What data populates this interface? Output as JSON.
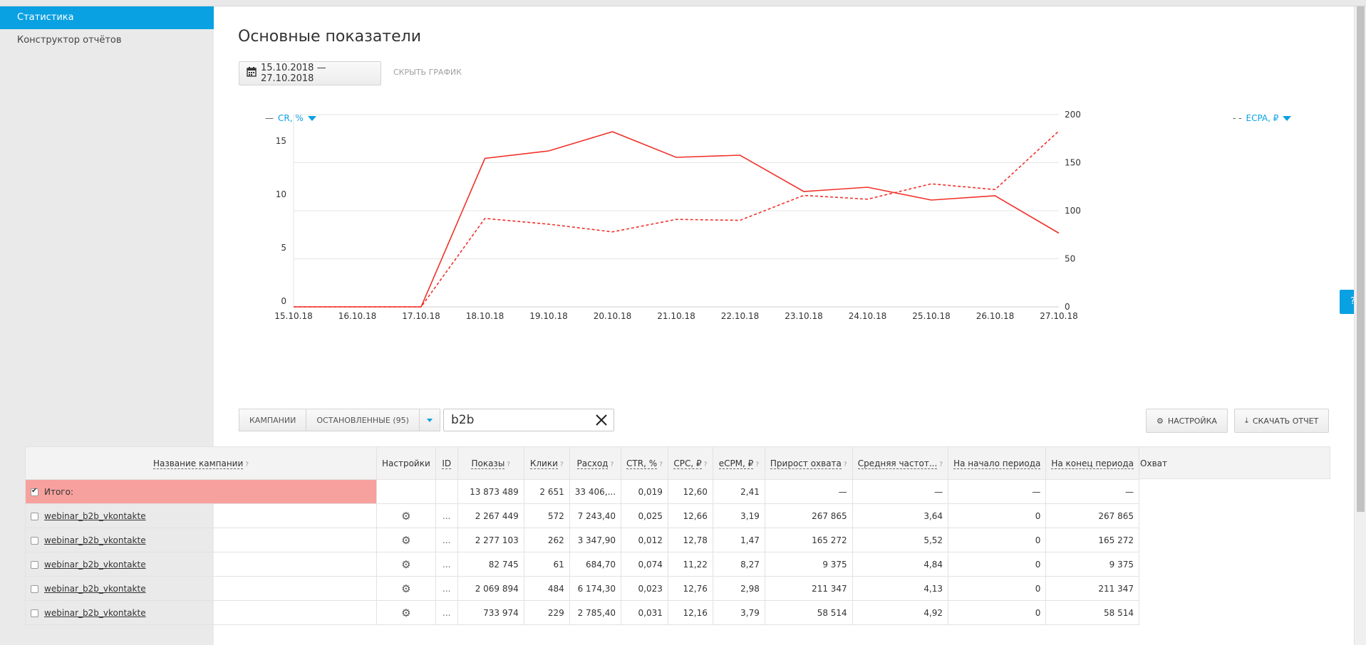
{
  "sidebar": {
    "items": [
      {
        "label": "Статистика",
        "active": true
      },
      {
        "label": "Конструктор отчётов",
        "active": false
      }
    ]
  },
  "page": {
    "title": "Основные показатели",
    "date_range": "15.10.2018  —  27.10.2018",
    "hide_chart": "СКРЫТЬ ГРАФИК"
  },
  "chart_data": {
    "type": "line",
    "left_axis_label": "CR, %",
    "right_axis_label": "ECPA, ₽",
    "categories": [
      "15.10.18",
      "16.10.18",
      "17.10.18",
      "18.10.18",
      "19.10.18",
      "20.10.18",
      "21.10.18",
      "22.10.18",
      "23.10.18",
      "24.10.18",
      "25.10.18",
      "26.10.18",
      "27.10.18"
    ],
    "left_ylim": [
      0,
      18
    ],
    "left_ticks": [
      0,
      5,
      10,
      15
    ],
    "right_ylim": [
      0,
      200
    ],
    "right_ticks": [
      0,
      50,
      100,
      150,
      200
    ],
    "series": [
      {
        "name": "CR, %",
        "axis": "left",
        "style": "solid",
        "color": "#f0312a",
        "values": [
          0,
          0,
          0,
          13.9,
          14.6,
          16.4,
          14.0,
          14.2,
          10.8,
          11.2,
          10.0,
          10.4,
          6.9
        ]
      },
      {
        "name": "ECPA, ₽",
        "axis": "right",
        "style": "dashed",
        "color": "#f0312a",
        "values": [
          0,
          0,
          0,
          92,
          86,
          78,
          91,
          90,
          116,
          112,
          128,
          122,
          183
        ]
      }
    ],
    "grid": true
  },
  "toolbar": {
    "campaigns": "КАМПАНИИ",
    "stopped": "ОСТАНОВЛЕННЫЕ",
    "stopped_count": "(95)",
    "search_value": "b2b",
    "settings": "НАСТРОЙКА",
    "download": "СКАЧАТЬ ОТЧЕТ"
  },
  "table": {
    "group_header": "Охват",
    "columns": [
      "Название кампании",
      "Настройки",
      "ID",
      "Показы",
      "Клики",
      "Расход",
      "CTR, %",
      "CPC, ₽",
      "eCPM, ₽",
      "Прирост охвата",
      "Средняя частот...",
      "На начало периода",
      "На конец периода"
    ],
    "total": {
      "label": "Итого:",
      "impressions": "13 873 489",
      "clicks": "2 651",
      "spend": "33 406,...",
      "ctr": "0,019",
      "cpc": "12,60",
      "ecpm": "2,41",
      "reach_growth": "—",
      "freq": "—",
      "start": "—",
      "end": "—"
    },
    "rows": [
      {
        "name": "webinar_b2b_vkontakte",
        "id": "...",
        "impressions": "2 267 449",
        "clicks": "572",
        "spend": "7 243,40",
        "ctr": "0,025",
        "cpc": "12,66",
        "ecpm": "3,19",
        "reach_growth": "267 865",
        "freq": "3,64",
        "start": "0",
        "end": "267 865"
      },
      {
        "name": "webinar_b2b_vkontakte",
        "id": "...",
        "impressions": "2 277 103",
        "clicks": "262",
        "spend": "3 347,90",
        "ctr": "0,012",
        "cpc": "12,78",
        "ecpm": "1,47",
        "reach_growth": "165 272",
        "freq": "5,52",
        "start": "0",
        "end": "165 272"
      },
      {
        "name": "webinar_b2b_vkontakte",
        "id": "...",
        "impressions": "82 745",
        "clicks": "61",
        "spend": "684,70",
        "ctr": "0,074",
        "cpc": "11,22",
        "ecpm": "8,27",
        "reach_growth": "9 375",
        "freq": "4,84",
        "start": "0",
        "end": "9 375"
      },
      {
        "name": "webinar_b2b_vkontakte",
        "id": "...",
        "impressions": "2 069 894",
        "clicks": "484",
        "spend": "6 174,30",
        "ctr": "0,023",
        "cpc": "12,76",
        "ecpm": "2,98",
        "reach_growth": "211 347",
        "freq": "4,13",
        "start": "0",
        "end": "211 347"
      },
      {
        "name": "webinar_b2b_vkontakte",
        "id": "...",
        "impressions": "733 974",
        "clicks": "229",
        "spend": "2 785,40",
        "ctr": "0,031",
        "cpc": "12,16",
        "ecpm": "3,79",
        "reach_growth": "58 514",
        "freq": "4,92",
        "start": "0",
        "end": "58 514"
      }
    ]
  },
  "help_label": "?"
}
